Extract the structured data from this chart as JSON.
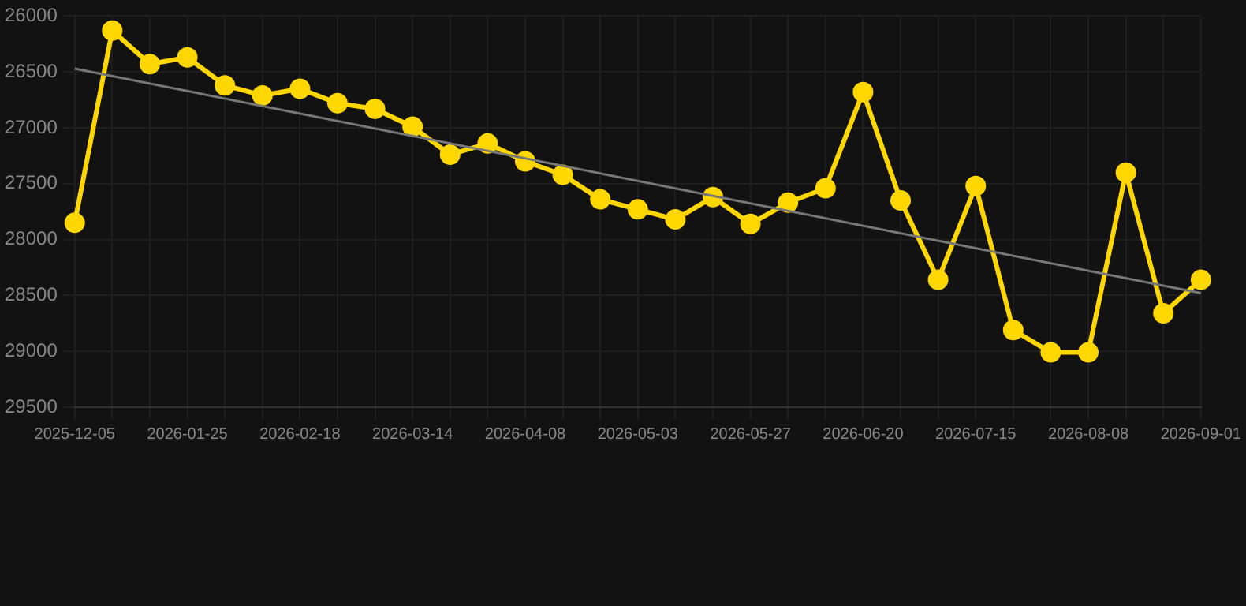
{
  "chart_data": {
    "type": "line",
    "categories": [
      "2025-12-05",
      null,
      null,
      "2026-01-25",
      null,
      null,
      "2026-02-18",
      null,
      null,
      "2026-03-14",
      null,
      null,
      "2026-04-08",
      null,
      null,
      "2026-05-03",
      null,
      null,
      "2026-05-27",
      null,
      null,
      "2026-06-20",
      null,
      null,
      "2026-07-15",
      null,
      null,
      "2026-08-08",
      null,
      null,
      "2026-09-01"
    ],
    "series": [
      {
        "color": "#ffd700",
        "marker": "circle",
        "values": [
          27850,
          26130,
          26430,
          26370,
          26620,
          26710,
          26650,
          26780,
          26830,
          26990,
          27240,
          27140,
          27300,
          27420,
          27640,
          27730,
          27820,
          27620,
          27860,
          27670,
          27540,
          26680,
          27650,
          28360,
          27520,
          28810,
          29010,
          29010,
          27400,
          28660,
          28360
        ]
      },
      {
        "color": "#777777",
        "marker": "none",
        "values": [
          26470,
          null,
          null,
          null,
          null,
          null,
          null,
          null,
          null,
          null,
          null,
          null,
          null,
          null,
          null,
          null,
          null,
          null,
          null,
          null,
          null,
          null,
          null,
          null,
          null,
          null,
          null,
          null,
          null,
          null,
          28480
        ]
      }
    ],
    "ylim": [
      29500,
      26000
    ],
    "yticks": [
      26000,
      26500,
      27000,
      27500,
      28000,
      28500,
      29000,
      29500
    ],
    "grid": true
  }
}
